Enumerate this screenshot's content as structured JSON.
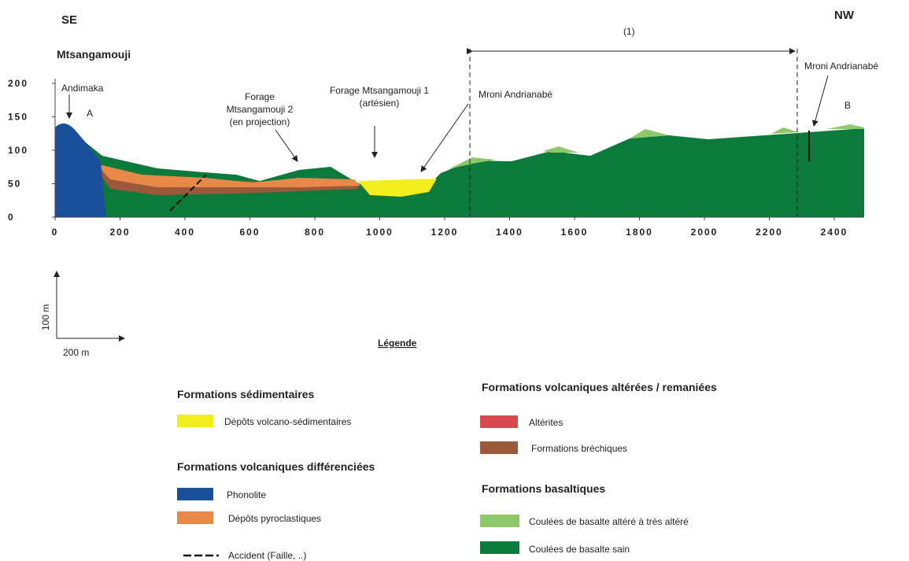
{
  "header": {
    "left": "SE",
    "right": "NW",
    "place": "Mtsangamouji"
  },
  "section": {
    "span_label": "(1)",
    "annotations": {
      "andimaka": "Andimaka",
      "point_a": "A",
      "point_b": "B",
      "forage_2": [
        "Forage",
        "Mtsangamouji 2",
        "(en projection)"
      ],
      "forage_1": [
        "Forage Mtsangamouji 1",
        "(artésien)"
      ],
      "mroni_center": "Mroni Andrianabé",
      "mroni_right": "Mroni Andrianabé"
    }
  },
  "axes": {
    "y_ticks": [
      200,
      150,
      100,
      50,
      0
    ],
    "x_ticks": [
      0,
      200,
      400,
      600,
      800,
      1000,
      1200,
      1400,
      1600,
      1800,
      2000,
      2200,
      2400
    ]
  },
  "scale": {
    "vertical": "100 m",
    "horizontal": "200 m"
  },
  "legend": {
    "title": "Légende",
    "groups": [
      {
        "title": "Formations sédimentaires",
        "items": [
          "Dépôts volcano-sédimentaires"
        ]
      },
      {
        "title": "Formations volcaniques différenciées",
        "items": [
          "Phonolite",
          "Dépôts pyroclastiques",
          "Accident  (Faille, ..)"
        ]
      },
      {
        "title": "Formations volcaniques altérées / remaniées",
        "items": [
          "Altérites",
          "Formations bréchiques"
        ]
      },
      {
        "title": "Formations basaltiques",
        "items": [
          "Coulées de basalte altéré à très altéré",
          "Coulées de basalte sain"
        ]
      }
    ]
  }
}
